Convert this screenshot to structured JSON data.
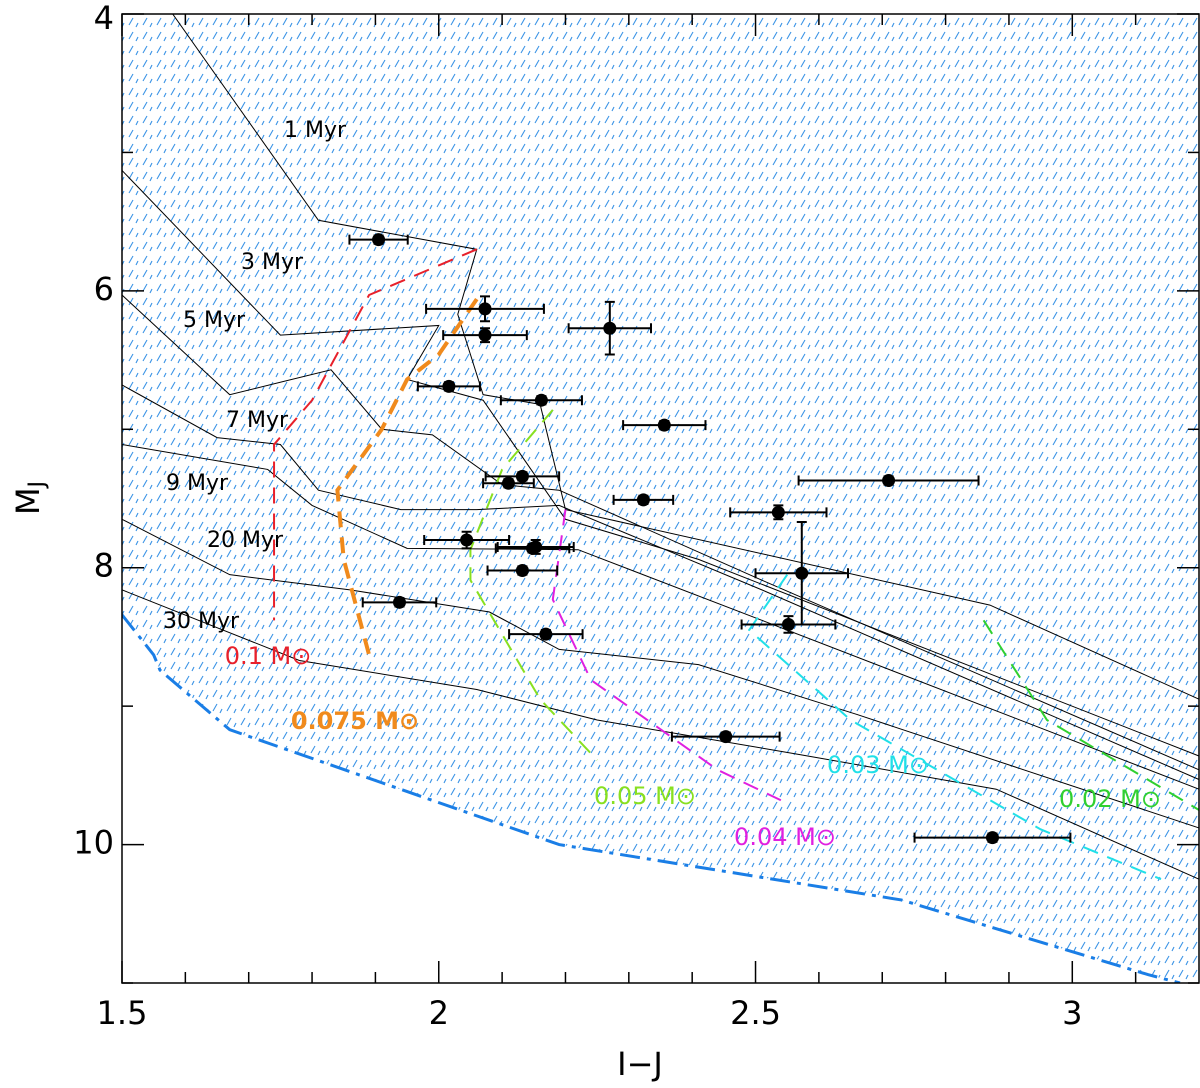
{
  "chart_data": {
    "type": "scatter",
    "xlabel": "I−J",
    "ylabel": "M",
    "ylabel_sub": "J",
    "xlim": [
      1.5,
      3.2
    ],
    "ylim": [
      4,
      11
    ],
    "y_inverted": true,
    "xticks": [
      1.5,
      2,
      2.5,
      3
    ],
    "yticks": [
      4,
      6,
      8,
      10
    ],
    "xminor": [
      1.6,
      1.7,
      1.8,
      1.9,
      2.1,
      2.2,
      2.3,
      2.4,
      2.6,
      2.7,
      2.8,
      2.9,
      3.1
    ],
    "yminor": [
      5,
      7,
      9,
      11
    ],
    "series": [
      {
        "color": "#000000",
        "x": [
          1.905,
          2.073,
          2.073,
          2.27,
          2.016,
          2.162,
          2.356,
          2.71,
          2.132,
          2.11,
          2.323,
          2.536,
          2.044,
          2.148,
          2.153,
          2.132,
          2.573,
          1.938,
          2.552,
          2.169,
          2.453,
          2.874
        ],
        "y": [
          5.63,
          6.13,
          6.32,
          6.27,
          6.69,
          6.79,
          6.97,
          7.37,
          7.34,
          7.39,
          7.51,
          7.6,
          7.8,
          7.86,
          7.85,
          8.02,
          8.04,
          8.25,
          8.41,
          8.48,
          9.22,
          9.95
        ],
        "xerr": [
          0.046,
          0.093,
          0.066,
          0.065,
          0.049,
          0.064,
          0.065,
          0.142,
          0.058,
          0.04,
          0.047,
          0.076,
          0.067,
          0.058,
          0.06,
          0.055,
          0.073,
          0.058,
          0.074,
          0.058,
          0.085,
          0.123
        ],
        "yerr": [
          0.03,
          0.09,
          0.05,
          0.19,
          0.03,
          0.03,
          0.03,
          0.03,
          0.03,
          0.03,
          0.03,
          0.05,
          0.06,
          0.03,
          0.05,
          0.03,
          0.37,
          0.03,
          0.06,
          0.03,
          0.03,
          0.03
        ]
      }
    ],
    "isochrones": [
      {
        "label": "1 Myr",
        "color": "#000000",
        "x": [
          1.58,
          1.81,
          2.06,
          2.03,
          2.07,
          2.16,
          2.2,
          2.87,
          3.2
        ],
        "y": [
          4.0,
          5.49,
          5.7,
          6.17,
          6.75,
          6.82,
          7.58,
          8.27,
          8.95
        ]
      },
      {
        "label": "3 Myr",
        "color": "#000000",
        "x": [
          1.5,
          1.75,
          2.0,
          1.95,
          2.07,
          2.2,
          2.41,
          3.2
        ],
        "y": [
          5.13,
          6.32,
          6.25,
          6.64,
          6.79,
          7.65,
          7.94,
          9.36
        ]
      },
      {
        "label": "5 Myr",
        "color": "#000000",
        "x": [
          1.5,
          1.67,
          1.83,
          1.91,
          1.99,
          2.1,
          2.19,
          2.51,
          3.2
        ],
        "y": [
          6.03,
          6.75,
          6.57,
          7.0,
          7.04,
          7.4,
          7.44,
          8.09,
          9.46
        ]
      },
      {
        "label": "7 Myr",
        "color": "#000000",
        "x": [
          1.5,
          1.65,
          1.75,
          1.81,
          1.94,
          2.06,
          2.19,
          2.51,
          3.2
        ],
        "y": [
          6.68,
          7.06,
          7.11,
          7.44,
          7.58,
          7.58,
          7.55,
          8.16,
          9.53
        ]
      },
      {
        "label": "9 Myr",
        "color": "#000000",
        "x": [
          1.5,
          1.73,
          1.8,
          1.95,
          2.22,
          2.51,
          3.2
        ],
        "y": [
          7.11,
          7.29,
          7.55,
          7.86,
          7.87,
          8.38,
          9.6
        ]
      },
      {
        "label": "20 Myr",
        "color": "#000000",
        "x": [
          1.5,
          1.67,
          1.86,
          2.08,
          2.19,
          2.41,
          2.66,
          3.2
        ],
        "y": [
          7.65,
          8.05,
          8.16,
          8.32,
          8.59,
          8.7,
          9.06,
          9.88
        ]
      },
      {
        "label": "30 Myr",
        "color": "#000000",
        "x": [
          1.5,
          1.78,
          2.06,
          2.25,
          2.57,
          2.88,
          3.2
        ],
        "y": [
          8.16,
          8.67,
          8.88,
          9.1,
          9.35,
          9.6,
          10.25
        ]
      }
    ],
    "mass_tracks": [
      {
        "label": "0.1 M⊙",
        "color": "#e8202a",
        "x": [
          2.06,
          1.89,
          1.8,
          1.74,
          1.74
        ],
        "y": [
          5.7,
          6.03,
          6.79,
          7.11,
          8.38
        ]
      },
      {
        "label": "0.075 M⊙",
        "color": "#f08a1c",
        "x": [
          2.06,
          2.0,
          1.95,
          1.91,
          1.84,
          1.85,
          1.89
        ],
        "y": [
          6.06,
          6.46,
          6.64,
          7.0,
          7.44,
          7.94,
          8.63
        ]
      },
      {
        "label": "0.05 M⊙",
        "color": "#88e020",
        "x": [
          2.18,
          2.1,
          2.05,
          2.05,
          2.16,
          2.25
        ],
        "y": [
          6.86,
          7.29,
          7.87,
          8.09,
          8.95,
          9.39
        ]
      },
      {
        "label": "0.04 M⊙",
        "color": "#e020e0",
        "x": [
          2.2,
          2.18,
          2.24,
          2.44,
          2.54
        ],
        "y": [
          7.58,
          8.23,
          8.81,
          9.46,
          9.68
        ]
      },
      {
        "label": "0.03 M⊙",
        "color": "#20e0e8",
        "x": [
          2.55,
          2.49,
          2.65,
          2.95,
          3.14
        ],
        "y": [
          8.05,
          8.45,
          9.1,
          9.89,
          10.25
        ]
      },
      {
        "label": "0.02 M⊙",
        "color": "#30d030",
        "x": [
          2.86,
          2.96,
          3.2
        ],
        "y": [
          8.38,
          9.1,
          9.75
        ]
      }
    ],
    "boundary": {
      "color": "#1a7ee6",
      "x": [
        1.5,
        1.55,
        1.56,
        1.67,
        2.19,
        2.73,
        3.12,
        3.17
      ],
      "y": [
        8.34,
        8.63,
        8.74,
        9.17,
        10.0,
        10.4,
        10.94,
        11.0
      ]
    }
  }
}
